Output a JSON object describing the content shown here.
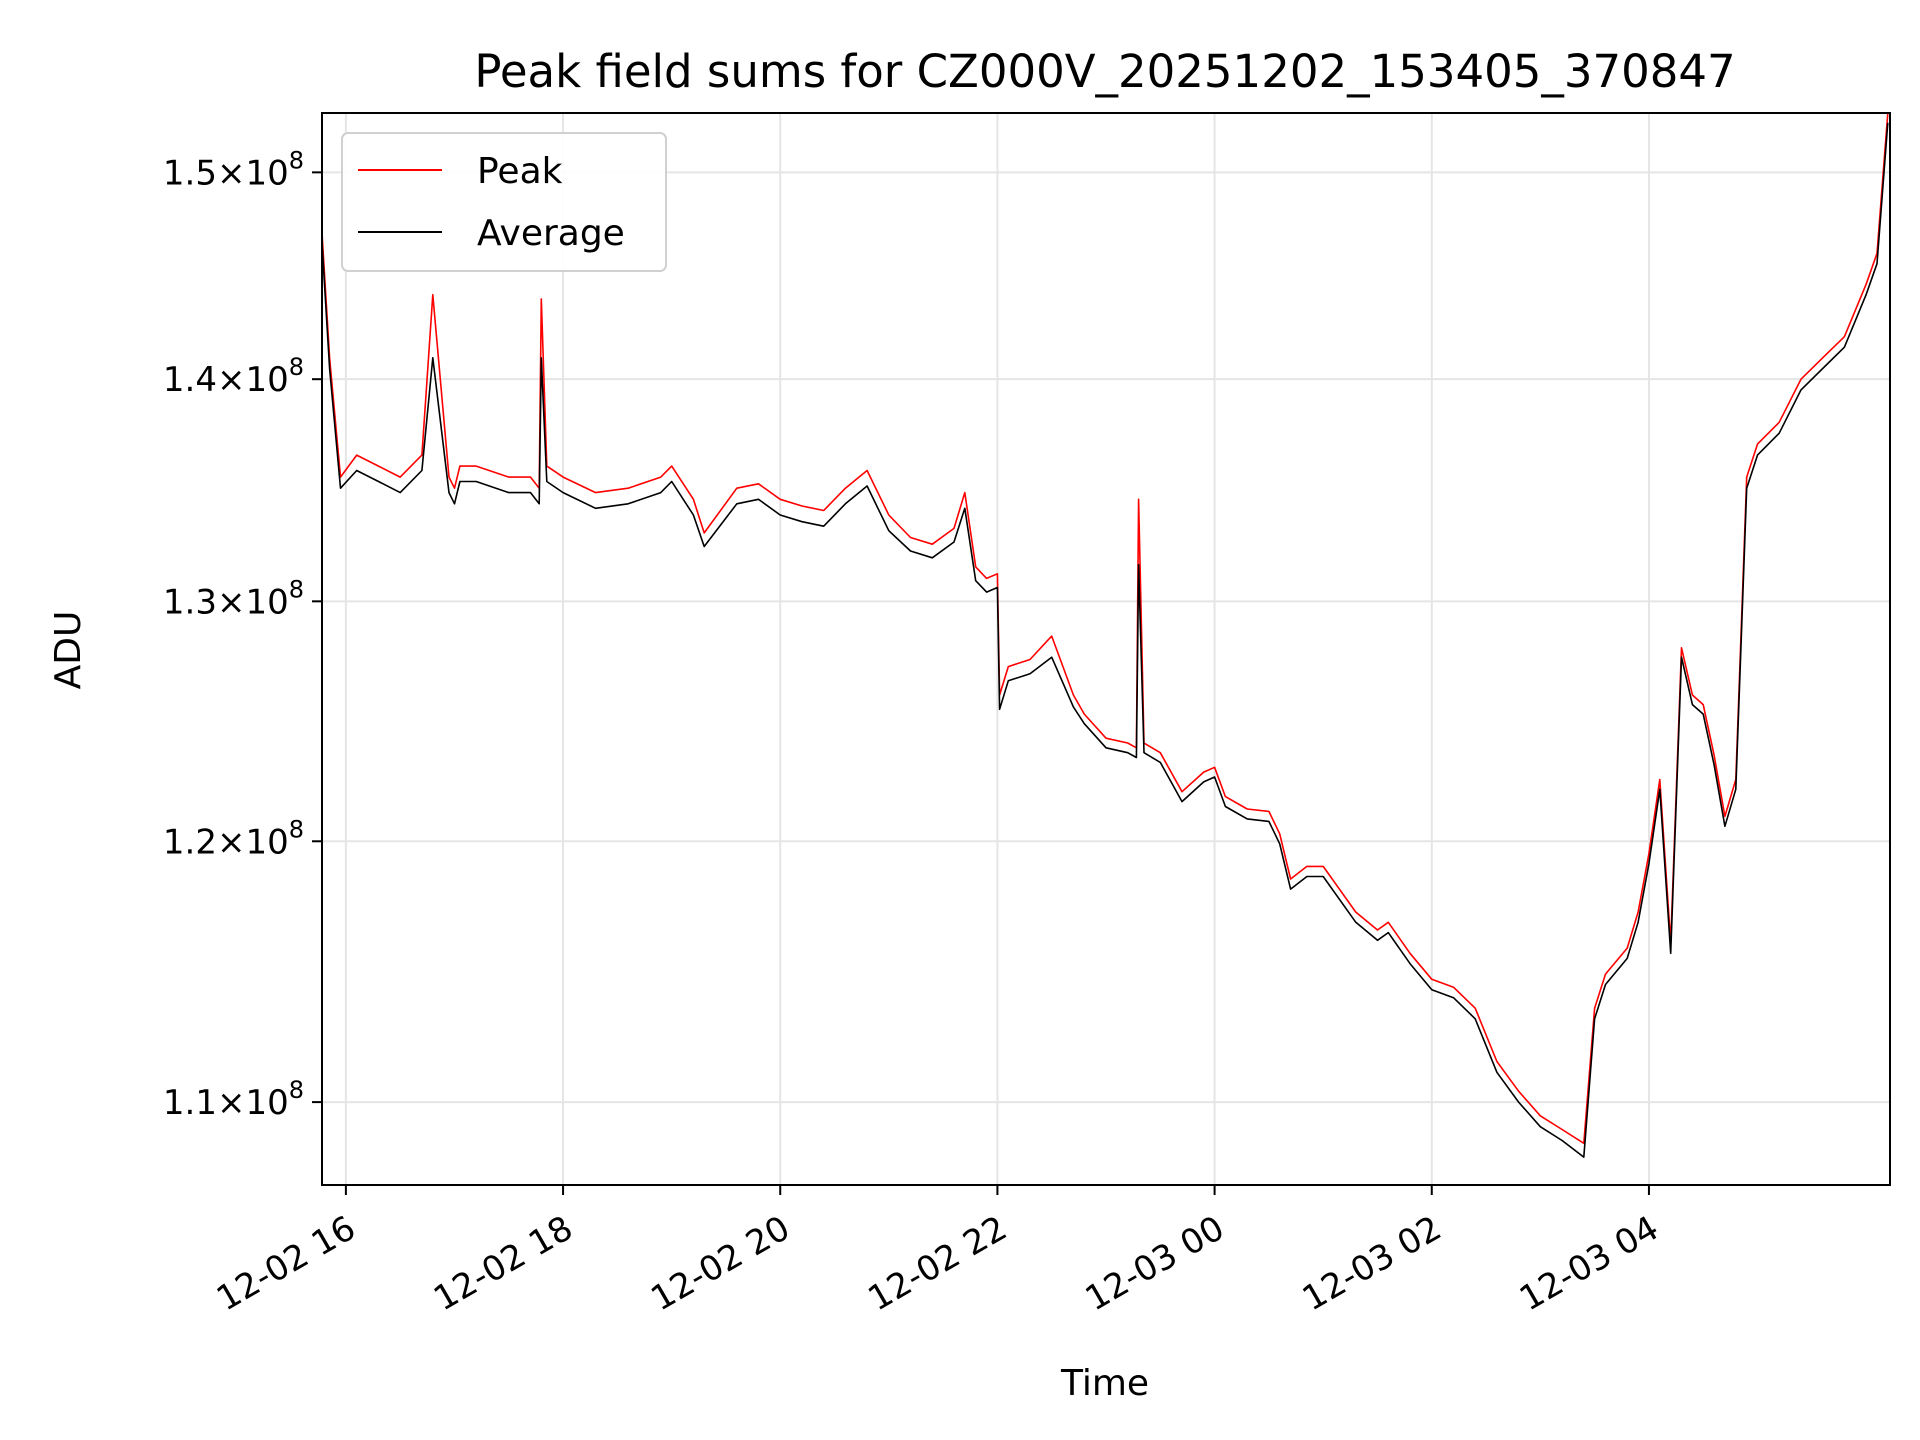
{
  "chart_data": {
    "type": "line",
    "title": "Peak field sums for CZ000V_20251202_153405_370847",
    "xlabel": "Time",
    "ylabel": "ADU",
    "grid": true,
    "legend_position": "upper-left",
    "y_scale": "log",
    "xlim_hours": [
      -0.22,
      14.22
    ],
    "ylim": [
      107000000,
      153000000
    ],
    "colors": {
      "peak": "#ff0000",
      "average": "#000000",
      "grid": "#e5e5e5",
      "axes": "#000000"
    },
    "x_ticks": [
      {
        "value": 0,
        "label": "12-02 16"
      },
      {
        "value": 2,
        "label": "12-02 18"
      },
      {
        "value": 4,
        "label": "12-02 20"
      },
      {
        "value": 6,
        "label": "12-02 22"
      },
      {
        "value": 8,
        "label": "12-03 00"
      },
      {
        "value": 10,
        "label": "12-03 02"
      },
      {
        "value": 12,
        "label": "12-03 04"
      }
    ],
    "y_ticks": [
      {
        "value": 110000000,
        "mantissa": "1.1",
        "base": "10",
        "exponent": "8"
      },
      {
        "value": 120000000,
        "mantissa": "1.2",
        "base": "10",
        "exponent": "8"
      },
      {
        "value": 130000000,
        "mantissa": "1.3",
        "base": "10",
        "exponent": "8"
      },
      {
        "value": 140000000,
        "mantissa": "1.4",
        "base": "10",
        "exponent": "8"
      },
      {
        "value": 150000000,
        "mantissa": "1.5",
        "base": "10",
        "exponent": "8"
      }
    ],
    "series": [
      {
        "name": "Peak",
        "x": [
          -0.22,
          -0.15,
          -0.05,
          0.1,
          0.3,
          0.5,
          0.7,
          0.8,
          0.95,
          1.0,
          1.05,
          1.2,
          1.5,
          1.7,
          1.78,
          1.8,
          1.85,
          2.0,
          2.3,
          2.6,
          2.9,
          3.0,
          3.2,
          3.3,
          3.6,
          3.8,
          4.0,
          4.2,
          4.4,
          4.6,
          4.8,
          5.0,
          5.2,
          5.4,
          5.6,
          5.7,
          5.8,
          5.9,
          6.0,
          6.02,
          6.1,
          6.3,
          6.5,
          6.7,
          6.8,
          7.0,
          7.2,
          7.28,
          7.3,
          7.35,
          7.5,
          7.7,
          7.9,
          8.0,
          8.1,
          8.3,
          8.5,
          8.6,
          8.7,
          8.85,
          9.0,
          9.3,
          9.5,
          9.6,
          9.8,
          10.0,
          10.2,
          10.4,
          10.6,
          10.8,
          11.0,
          11.2,
          11.4,
          11.5,
          11.6,
          11.8,
          11.9,
          12.0,
          12.1,
          12.2,
          12.3,
          12.4,
          12.5,
          12.6,
          12.7,
          12.8,
          12.9,
          13.0,
          13.2,
          13.4,
          13.6,
          13.8,
          14.0,
          14.1,
          14.2
        ],
        "values": [
          147000000,
          141000000,
          135500000,
          136500000,
          136000000,
          135500000,
          136500000,
          144000000,
          135500000,
          135000000,
          136000000,
          136000000,
          135500000,
          135500000,
          135000000,
          143800000,
          136000000,
          135500000,
          134800000,
          135000000,
          135500000,
          136000000,
          134500000,
          133000000,
          135000000,
          135200000,
          134500000,
          134200000,
          134000000,
          135000000,
          135800000,
          133800000,
          132800000,
          132500000,
          133200000,
          134800000,
          131500000,
          131000000,
          131200000,
          126000000,
          127200000,
          127500000,
          128500000,
          126000000,
          125200000,
          124200000,
          124000000,
          123800000,
          134500000,
          124000000,
          123600000,
          122000000,
          122800000,
          123000000,
          121800000,
          121300000,
          121200000,
          120300000,
          118500000,
          119000000,
          119000000,
          117200000,
          116500000,
          116800000,
          115600000,
          114600000,
          114300000,
          113500000,
          111500000,
          110400000,
          109500000,
          109000000,
          108500000,
          113500000,
          114800000,
          115800000,
          117200000,
          119500000,
          122500000,
          116000000,
          128000000,
          126000000,
          125600000,
          123500000,
          121000000,
          122500000,
          135500000,
          137000000,
          138000000,
          140000000,
          141000000,
          142000000,
          144500000,
          146000000,
          153000000
        ]
      },
      {
        "name": "Average",
        "x": [
          -0.22,
          -0.15,
          -0.05,
          0.1,
          0.3,
          0.5,
          0.7,
          0.8,
          0.95,
          1.0,
          1.05,
          1.2,
          1.5,
          1.7,
          1.78,
          1.8,
          1.85,
          2.0,
          2.3,
          2.6,
          2.9,
          3.0,
          3.2,
          3.3,
          3.6,
          3.8,
          4.0,
          4.2,
          4.4,
          4.6,
          4.8,
          5.0,
          5.2,
          5.4,
          5.6,
          5.7,
          5.8,
          5.9,
          6.0,
          6.02,
          6.1,
          6.3,
          6.5,
          6.7,
          6.8,
          7.0,
          7.2,
          7.28,
          7.3,
          7.35,
          7.5,
          7.7,
          7.9,
          8.0,
          8.1,
          8.3,
          8.5,
          8.6,
          8.7,
          8.85,
          9.0,
          9.3,
          9.5,
          9.6,
          9.8,
          10.0,
          10.2,
          10.4,
          10.6,
          10.8,
          11.0,
          11.2,
          11.4,
          11.5,
          11.6,
          11.8,
          11.9,
          12.0,
          12.1,
          12.2,
          12.3,
          12.4,
          12.5,
          12.6,
          12.7,
          12.8,
          12.9,
          13.0,
          13.2,
          13.4,
          13.6,
          13.8,
          14.0,
          14.1,
          14.2
        ],
        "values": [
          146500000,
          140500000,
          135000000,
          135800000,
          135300000,
          134800000,
          135800000,
          141000000,
          134800000,
          134300000,
          135300000,
          135300000,
          134800000,
          134800000,
          134300000,
          141000000,
          135300000,
          134800000,
          134100000,
          134300000,
          134800000,
          135300000,
          133800000,
          132400000,
          134300000,
          134500000,
          133800000,
          133500000,
          133300000,
          134300000,
          135100000,
          133100000,
          132200000,
          131900000,
          132600000,
          134100000,
          130900000,
          130400000,
          130600000,
          125400000,
          126600000,
          126900000,
          127600000,
          125500000,
          124800000,
          123800000,
          123600000,
          123400000,
          131600000,
          123600000,
          123200000,
          121600000,
          122400000,
          122600000,
          121400000,
          120900000,
          120800000,
          119900000,
          118100000,
          118600000,
          118600000,
          116800000,
          116100000,
          116400000,
          115200000,
          114200000,
          113900000,
          113100000,
          111100000,
          110000000,
          109100000,
          108600000,
          108000000,
          113100000,
          114400000,
          115400000,
          116800000,
          119100000,
          122100000,
          115600000,
          127600000,
          125600000,
          125200000,
          123100000,
          120600000,
          122100000,
          135000000,
          136500000,
          137500000,
          139500000,
          140500000,
          141500000,
          144000000,
          145500000,
          152500000
        ]
      }
    ]
  }
}
